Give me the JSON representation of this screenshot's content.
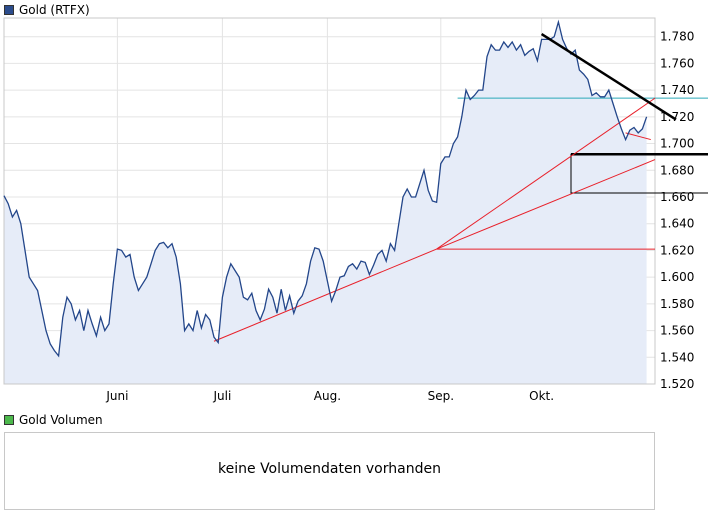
{
  "price_legend": {
    "label": "Gold (RTFX)",
    "color": "#2b4c8c"
  },
  "volume_legend": {
    "label": "Gold Volumen",
    "color": "#4cb84c"
  },
  "volume_message": "keine Volumendaten vorhanden",
  "chart_data": {
    "type": "area",
    "title": "",
    "series_name": "Gold (RTFX)",
    "ylim": [
      1520,
      1794
    ],
    "grid": true,
    "y_ticks": [
      1520,
      1540,
      1560,
      1580,
      1600,
      1620,
      1640,
      1660,
      1680,
      1700,
      1720,
      1740,
      1760,
      1780
    ],
    "y_tick_labels": [
      "1.520",
      "1.540",
      "1.560",
      "1.580",
      "1.600",
      "1.620",
      "1.640",
      "1.660",
      "1.680",
      "1.700",
      "1.720",
      "1.740",
      "1.760",
      "1.780"
    ],
    "x_range": [
      0,
      155
    ],
    "x_ticks": [
      {
        "label": "Juni",
        "x": 27
      },
      {
        "label": "Juli",
        "x": 52
      },
      {
        "label": "Aug.",
        "x": 77
      },
      {
        "label": "Sep.",
        "x": 104
      },
      {
        "label": "Okt.",
        "x": 128
      }
    ],
    "x": [
      0,
      1,
      2,
      3,
      4,
      5,
      6,
      7,
      8,
      9,
      10,
      11,
      12,
      13,
      14,
      15,
      16,
      17,
      18,
      19,
      20,
      21,
      22,
      23,
      24,
      25,
      26,
      27,
      28,
      29,
      30,
      31,
      32,
      33,
      34,
      35,
      36,
      37,
      38,
      39,
      40,
      41,
      42,
      43,
      44,
      45,
      46,
      47,
      48,
      49,
      50,
      51,
      52,
      53,
      54,
      55,
      56,
      57,
      58,
      59,
      60,
      61,
      62,
      63,
      64,
      65,
      66,
      67,
      68,
      69,
      70,
      71,
      72,
      73,
      74,
      75,
      76,
      77,
      78,
      79,
      80,
      81,
      82,
      83,
      84,
      85,
      86,
      87,
      88,
      89,
      90,
      91,
      92,
      93,
      94,
      95,
      96,
      97,
      98,
      99,
      100,
      101,
      102,
      103,
      104,
      105,
      106,
      107,
      108,
      109,
      110,
      111,
      112,
      113,
      114,
      115,
      116,
      117,
      118,
      119,
      120,
      121,
      122,
      123,
      124,
      125,
      126,
      127,
      128,
      129,
      130,
      131,
      132,
      133,
      134,
      135,
      136,
      137,
      138,
      139,
      140,
      141,
      142,
      143,
      144,
      145,
      146,
      147,
      148,
      149,
      150,
      151,
      152,
      153
    ],
    "values": [
      1661,
      1655,
      1645,
      1650,
      1640,
      1620,
      1600,
      1595,
      1590,
      1575,
      1560,
      1550,
      1545,
      1541,
      1570,
      1585,
      1580,
      1568,
      1575,
      1560,
      1575,
      1565,
      1556,
      1570,
      1560,
      1565,
      1595,
      1621,
      1620,
      1615,
      1617,
      1600,
      1590,
      1595,
      1600,
      1610,
      1620,
      1625,
      1626,
      1622,
      1625,
      1615,
      1595,
      1560,
      1565,
      1560,
      1575,
      1562,
      1572,
      1568,
      1555,
      1551,
      1585,
      1600,
      1610,
      1605,
      1600,
      1585,
      1583,
      1588,
      1575,
      1568,
      1576,
      1591,
      1585,
      1573,
      1591,
      1575,
      1586,
      1573,
      1582,
      1586,
      1595,
      1612,
      1622,
      1621,
      1612,
      1597,
      1582,
      1590,
      1600,
      1601,
      1608,
      1610,
      1606,
      1612,
      1611,
      1602,
      1609,
      1617,
      1620,
      1612,
      1625,
      1620,
      1640,
      1660,
      1666,
      1660,
      1660,
      1670,
      1680,
      1665,
      1657,
      1656,
      1685,
      1690,
      1690,
      1700,
      1705,
      1720,
      1740,
      1733,
      1736,
      1740,
      1740,
      1765,
      1774,
      1770,
      1770,
      1776,
      1772,
      1776,
      1770,
      1774,
      1766,
      1769,
      1771,
      1762,
      1778,
      1778,
      1778,
      1780,
      1791,
      1778,
      1771,
      1767,
      1770,
      1755,
      1752,
      1748,
      1736,
      1738,
      1735,
      1735,
      1740,
      1730,
      1720,
      1711,
      1703,
      1710,
      1712,
      1708,
      1711,
      1720
    ],
    "annotations": {
      "red_support_lines": [
        {
          "from": [
            50,
            1552
          ],
          "to": [
            103,
            1621
          ]
        },
        {
          "from": [
            103,
            1621
          ],
          "to": [
            155,
            1734
          ]
        },
        {
          "from": [
            103,
            1621
          ],
          "to": [
            155,
            1688
          ]
        },
        {
          "from": [
            103,
            1621
          ],
          "to": [
            155,
            1621
          ]
        },
        {
          "from": [
            148,
            1708
          ],
          "to": [
            154,
            1703
          ]
        }
      ],
      "black_trend_line": {
        "from": [
          128,
          1782
        ],
        "to": [
          160,
          1718
        ]
      },
      "cyan_level": {
        "y": 1734,
        "x_from": [
          108,
          155
        ]
      },
      "black_box": {
        "x_from": 135,
        "y_top": 1692,
        "y_bottom": 1663,
        "x_to": 162
      }
    }
  }
}
